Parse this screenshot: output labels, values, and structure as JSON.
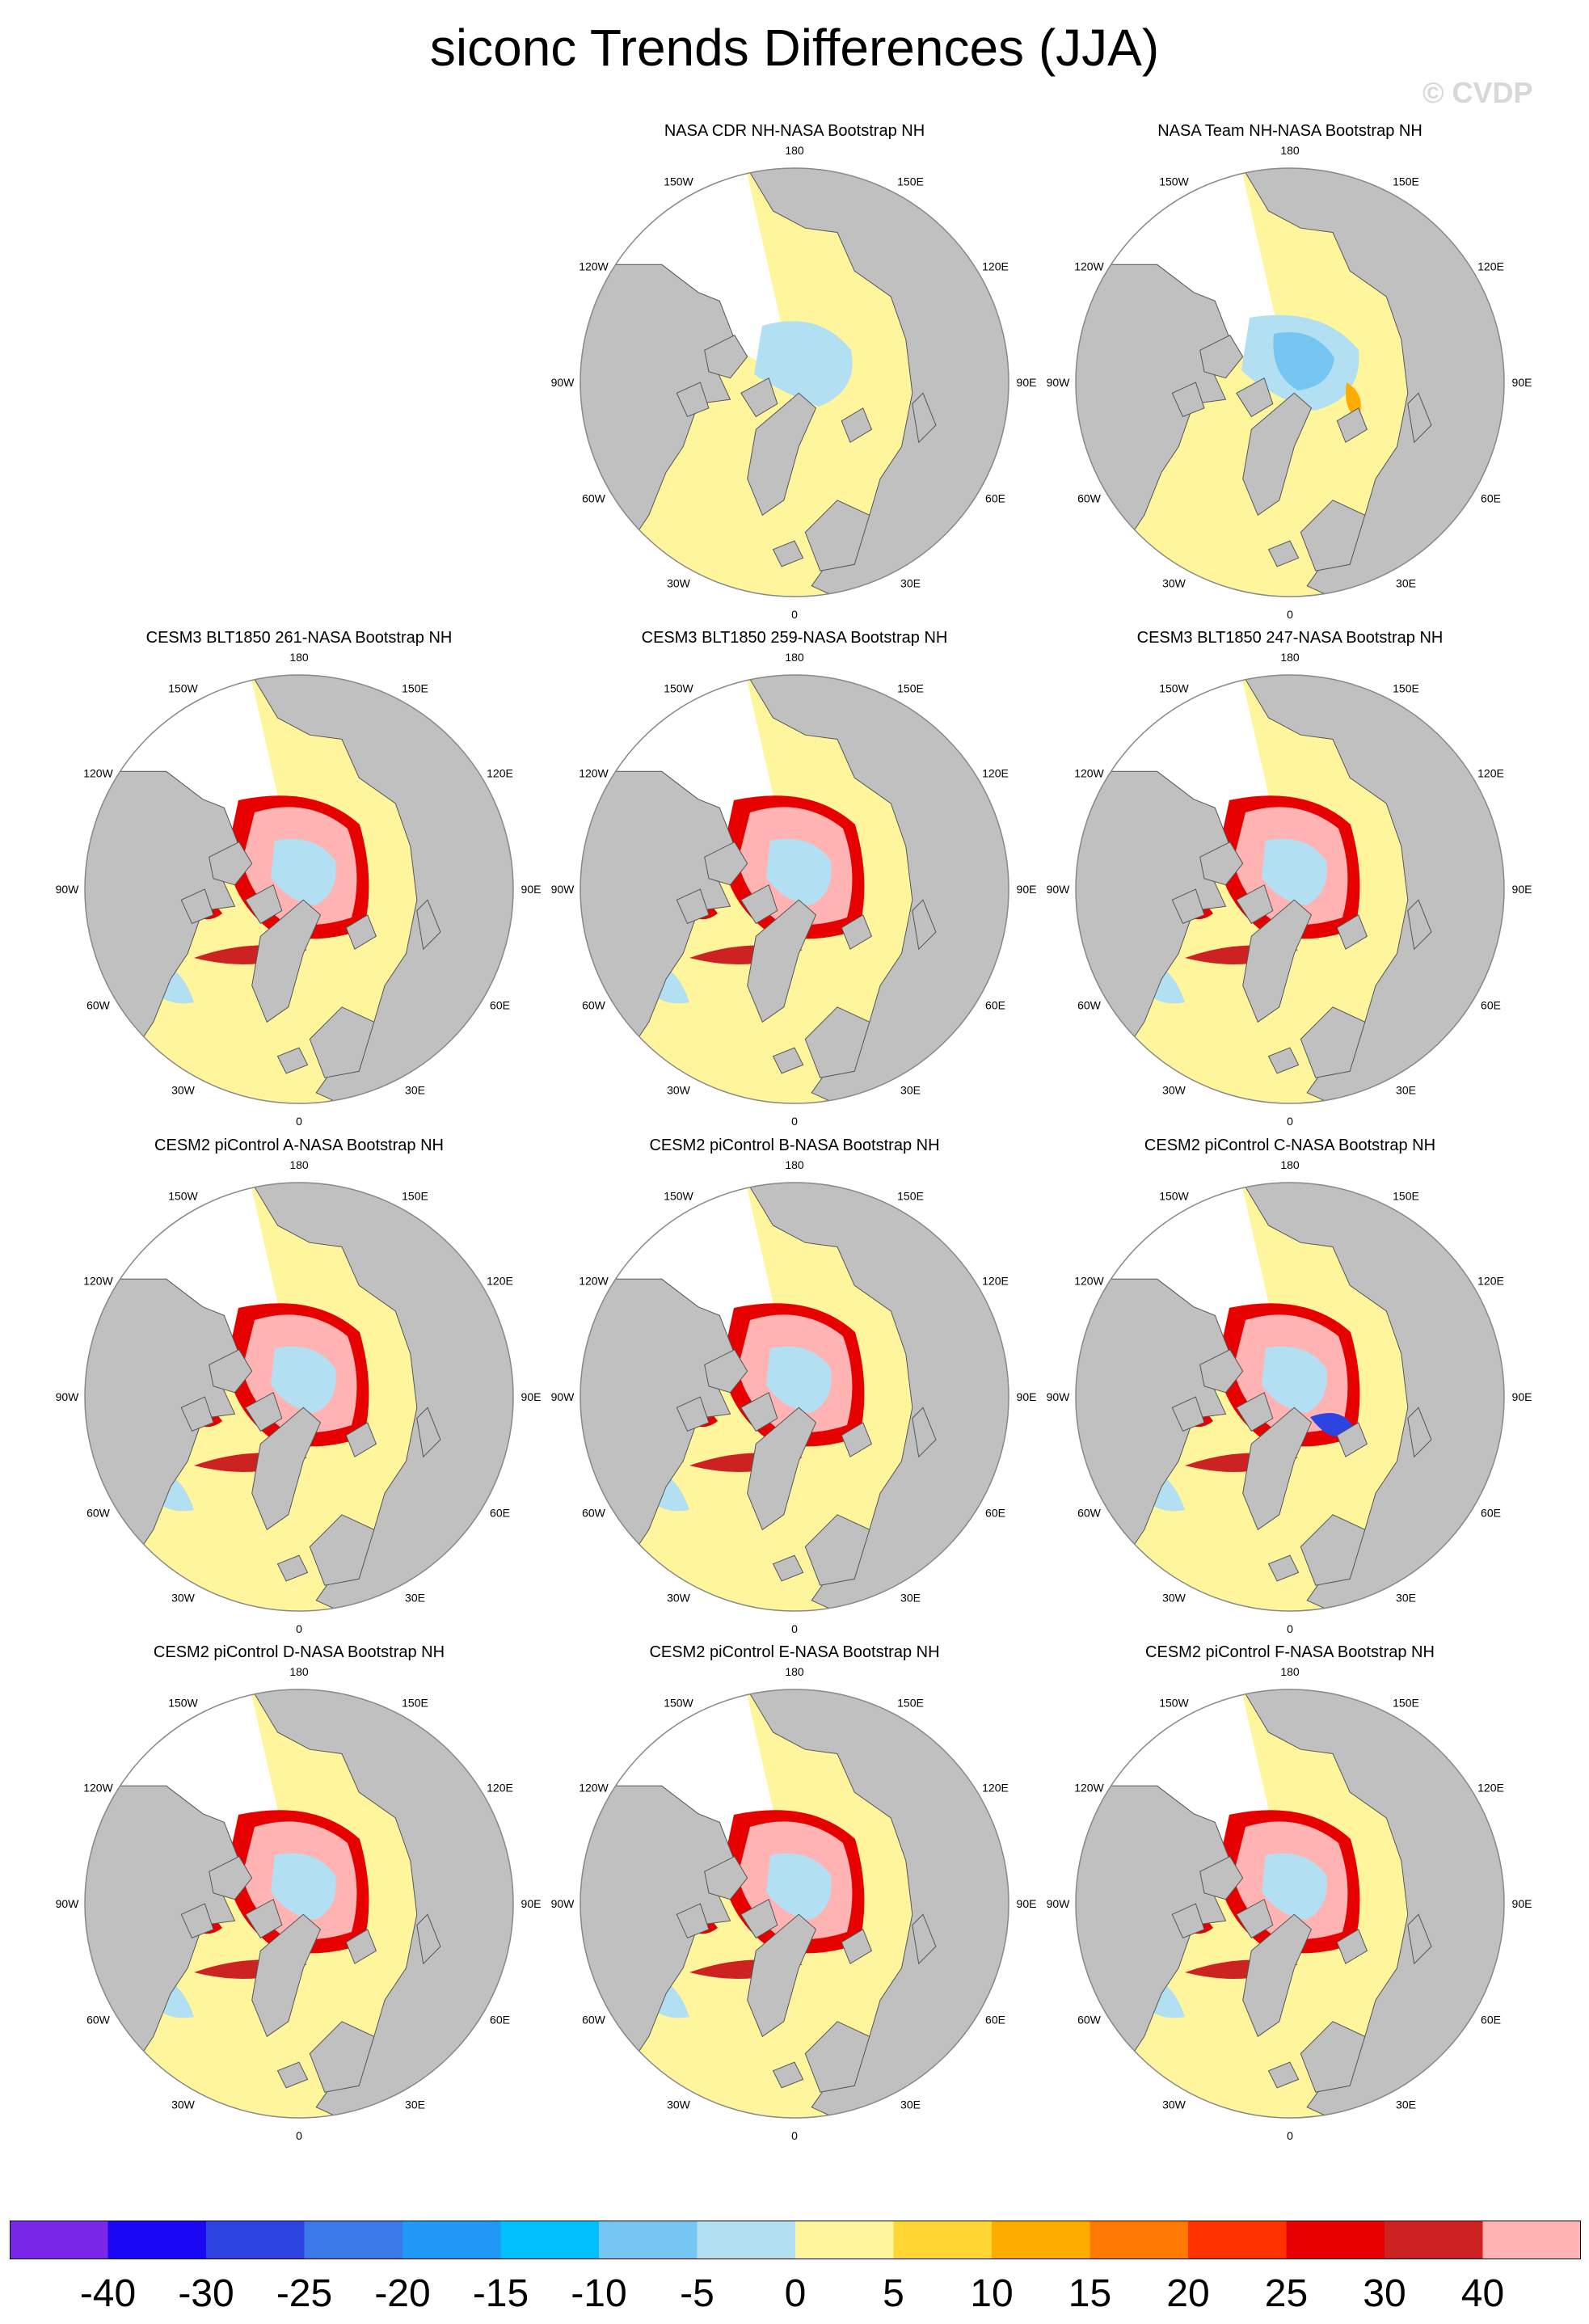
{
  "title": "siconc Trends Differences (JJA)",
  "watermark": "© CVDP",
  "panels": [
    {
      "title": "NASA CDR NH-NASA Bootstrap NH",
      "col": 1,
      "row": 0,
      "style": "cdr"
    },
    {
      "title": "NASA Team NH-NASA Bootstrap NH",
      "col": 2,
      "row": 0,
      "style": "team"
    },
    {
      "title": "CESM3 BLT1850 261-NASA Bootstrap NH",
      "col": 0,
      "row": 1,
      "style": "model"
    },
    {
      "title": "CESM3 BLT1850 259-NASA Bootstrap NH",
      "col": 1,
      "row": 1,
      "style": "model"
    },
    {
      "title": "CESM3 BLT1850 247-NASA Bootstrap NH",
      "col": 2,
      "row": 1,
      "style": "model"
    },
    {
      "title": "CESM2 piControl A-NASA Bootstrap NH",
      "col": 0,
      "row": 2,
      "style": "model"
    },
    {
      "title": "CESM2 piControl B-NASA Bootstrap NH",
      "col": 1,
      "row": 2,
      "style": "model"
    },
    {
      "title": "CESM2 piControl C-NASA Bootstrap NH",
      "col": 2,
      "row": 2,
      "style": "modelblue"
    },
    {
      "title": "CESM2 piControl D-NASA Bootstrap NH",
      "col": 0,
      "row": 3,
      "style": "model"
    },
    {
      "title": "CESM2 piControl E-NASA Bootstrap NH",
      "col": 1,
      "row": 3,
      "style": "model"
    },
    {
      "title": "CESM2 piControl F-NASA Bootstrap NH",
      "col": 2,
      "row": 3,
      "style": "model"
    }
  ],
  "longitude_labels": [
    "180",
    "150E",
    "120E",
    "90E",
    "60E",
    "30E",
    "0",
    "30W",
    "60W",
    "90W",
    "120W",
    "150W"
  ],
  "colors": {
    "land": "#c0c0c0",
    "coastline": "#555555",
    "ocean_zero": "#fff59d",
    "map_border": "#888888"
  },
  "colorbar": {
    "colors": [
      "#7b27ea",
      "#1a08f5",
      "#2d44e0",
      "#3b79e8",
      "#1f98f6",
      "#00c0fd",
      "#75c6f2",
      "#b3dff3",
      "#fff59d",
      "#ffd633",
      "#ffab00",
      "#ff7a00",
      "#ff3300",
      "#e60000",
      "#cc2222",
      "#ffb3b3"
    ],
    "labels": [
      "-40",
      "-30",
      "-25",
      "-20",
      "-15",
      "-10",
      "-5",
      "0",
      "5",
      "10",
      "15",
      "20",
      "25",
      "30",
      "40"
    ]
  }
}
